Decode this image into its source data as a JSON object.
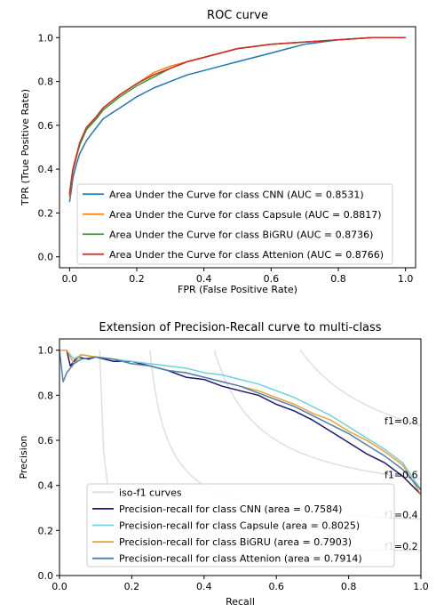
{
  "chart_data": [
    {
      "type": "line",
      "title": "ROC curve",
      "xlabel": "FPR (False Positive Rate)",
      "ylabel": "TPR (True Positive Rate)",
      "xlim": [
        -0.03,
        1.03
      ],
      "ylim": [
        -0.05,
        1.05
      ],
      "xticks": [
        0.0,
        0.2,
        0.4,
        0.6,
        0.8,
        1.0
      ],
      "yticks": [
        0.0,
        0.2,
        0.4,
        0.6,
        0.8,
        1.0
      ],
      "grid": false,
      "legend_position": "lower-right",
      "series": [
        {
          "name": "Area Under the Curve for class CNN (AUC = 0.8531)",
          "color": "#1f77b4",
          "x": [
            0.0,
            0.005,
            0.01,
            0.02,
            0.03,
            0.05,
            0.08,
            0.1,
            0.15,
            0.2,
            0.25,
            0.3,
            0.35,
            0.4,
            0.45,
            0.5,
            0.55,
            0.6,
            0.65,
            0.7,
            0.75,
            0.8,
            0.9,
            1.0
          ],
          "y": [
            0.25,
            0.3,
            0.36,
            0.42,
            0.47,
            0.53,
            0.59,
            0.63,
            0.68,
            0.73,
            0.77,
            0.8,
            0.83,
            0.85,
            0.87,
            0.89,
            0.91,
            0.93,
            0.95,
            0.97,
            0.98,
            0.99,
            1.0,
            1.0
          ]
        },
        {
          "name": "Area Under the Curve for class Capsule (AUC = 0.8817)",
          "color": "#ff7f0e",
          "x": [
            0.0,
            0.005,
            0.01,
            0.02,
            0.03,
            0.05,
            0.08,
            0.1,
            0.15,
            0.2,
            0.25,
            0.3,
            0.35,
            0.4,
            0.45,
            0.5,
            0.55,
            0.6,
            0.7,
            0.8,
            0.9,
            1.0
          ],
          "y": [
            0.27,
            0.33,
            0.39,
            0.45,
            0.51,
            0.58,
            0.64,
            0.68,
            0.74,
            0.79,
            0.84,
            0.87,
            0.89,
            0.91,
            0.93,
            0.95,
            0.96,
            0.97,
            0.98,
            0.99,
            1.0,
            1.0
          ]
        },
        {
          "name": "Area Under the Curve for class BiGRU (AUC = 0.8736)",
          "color": "#2ca02c",
          "x": [
            0.0,
            0.005,
            0.01,
            0.02,
            0.03,
            0.05,
            0.08,
            0.1,
            0.15,
            0.2,
            0.25,
            0.3,
            0.35,
            0.4,
            0.45,
            0.5,
            0.55,
            0.6,
            0.7,
            0.8,
            0.9,
            1.0
          ],
          "y": [
            0.29,
            0.35,
            0.4,
            0.46,
            0.51,
            0.58,
            0.63,
            0.67,
            0.73,
            0.78,
            0.82,
            0.86,
            0.89,
            0.91,
            0.93,
            0.95,
            0.96,
            0.97,
            0.98,
            0.99,
            1.0,
            1.0
          ]
        },
        {
          "name": "Area Under the Curve for class Attenion (AUC = 0.8766)",
          "color": "#d62728",
          "x": [
            0.0,
            0.005,
            0.01,
            0.02,
            0.03,
            0.05,
            0.08,
            0.1,
            0.15,
            0.2,
            0.25,
            0.3,
            0.35,
            0.4,
            0.45,
            0.5,
            0.55,
            0.6,
            0.7,
            0.8,
            0.9,
            1.0
          ],
          "y": [
            0.28,
            0.34,
            0.4,
            0.46,
            0.52,
            0.59,
            0.64,
            0.68,
            0.74,
            0.79,
            0.83,
            0.86,
            0.89,
            0.91,
            0.93,
            0.95,
            0.96,
            0.97,
            0.98,
            0.99,
            1.0,
            1.0
          ]
        }
      ]
    },
    {
      "type": "line",
      "title": "Extension of Precision-Recall curve to multi-class",
      "xlabel": "Recall",
      "ylabel": "Precision",
      "xlim": [
        0.0,
        1.0
      ],
      "ylim": [
        0.0,
        1.05
      ],
      "xticks": [
        0.0,
        0.2,
        0.4,
        0.6,
        0.8,
        1.0
      ],
      "yticks": [
        0.0,
        0.2,
        0.4,
        0.6,
        0.8,
        1.0
      ],
      "grid": false,
      "legend_position": "lower-left",
      "iso_f1": {
        "name": "iso-f1 curves",
        "color": "#dddddd",
        "levels": [
          0.2,
          0.4,
          0.6,
          0.8
        ],
        "labels": [
          "f1=0.2",
          "f1=0.4",
          "f1=0.6",
          "f1=0.8"
        ]
      },
      "series": [
        {
          "name": "Precision-recall for class CNN (area = 0.7584)",
          "color": "#191970",
          "x": [
            0.0,
            0.02,
            0.03,
            0.05,
            0.08,
            0.1,
            0.15,
            0.2,
            0.25,
            0.3,
            0.35,
            0.4,
            0.45,
            0.5,
            0.55,
            0.6,
            0.65,
            0.7,
            0.75,
            0.8,
            0.85,
            0.9,
            0.95,
            1.0
          ],
          "y": [
            1.0,
            1.0,
            0.93,
            0.97,
            0.96,
            0.97,
            0.95,
            0.95,
            0.93,
            0.91,
            0.88,
            0.87,
            0.84,
            0.82,
            0.8,
            0.76,
            0.73,
            0.69,
            0.64,
            0.59,
            0.54,
            0.5,
            0.44,
            0.36
          ]
        },
        {
          "name": "Precision-recall for class Capsule (area = 0.8025)",
          "color": "#6fd0e0",
          "x": [
            0.0,
            0.02,
            0.04,
            0.06,
            0.1,
            0.15,
            0.2,
            0.25,
            0.3,
            0.35,
            0.4,
            0.45,
            0.5,
            0.55,
            0.6,
            0.65,
            0.7,
            0.75,
            0.8,
            0.85,
            0.9,
            0.95,
            1.0
          ],
          "y": [
            1.0,
            1.0,
            0.96,
            0.98,
            0.97,
            0.96,
            0.95,
            0.94,
            0.93,
            0.92,
            0.9,
            0.89,
            0.87,
            0.85,
            0.82,
            0.79,
            0.75,
            0.71,
            0.66,
            0.61,
            0.56,
            0.5,
            0.38
          ]
        },
        {
          "name": "Precision-recall for class BiGRU (area = 0.7903)",
          "color": "#f0a030",
          "x": [
            0.0,
            0.02,
            0.04,
            0.06,
            0.1,
            0.15,
            0.2,
            0.25,
            0.3,
            0.35,
            0.4,
            0.45,
            0.5,
            0.55,
            0.6,
            0.65,
            0.7,
            0.75,
            0.8,
            0.85,
            0.9,
            0.95,
            1.0
          ],
          "y": [
            1.0,
            1.0,
            0.94,
            0.98,
            0.97,
            0.96,
            0.94,
            0.93,
            0.91,
            0.9,
            0.88,
            0.86,
            0.84,
            0.82,
            0.79,
            0.76,
            0.72,
            0.69,
            0.64,
            0.6,
            0.55,
            0.49,
            0.36
          ]
        },
        {
          "name": "Precision-recall for class Attenion (area = 0.7914)",
          "color": "#4f80b0",
          "x": [
            0.0,
            0.01,
            0.02,
            0.04,
            0.06,
            0.1,
            0.15,
            0.2,
            0.25,
            0.3,
            0.35,
            0.4,
            0.45,
            0.5,
            0.55,
            0.6,
            0.65,
            0.7,
            0.75,
            0.8,
            0.85,
            0.9,
            0.95,
            1.0
          ],
          "y": [
            1.0,
            0.86,
            0.9,
            0.94,
            0.96,
            0.97,
            0.96,
            0.94,
            0.93,
            0.91,
            0.9,
            0.88,
            0.86,
            0.84,
            0.81,
            0.78,
            0.75,
            0.71,
            0.67,
            0.63,
            0.58,
            0.53,
            0.47,
            0.38
          ]
        }
      ]
    }
  ]
}
